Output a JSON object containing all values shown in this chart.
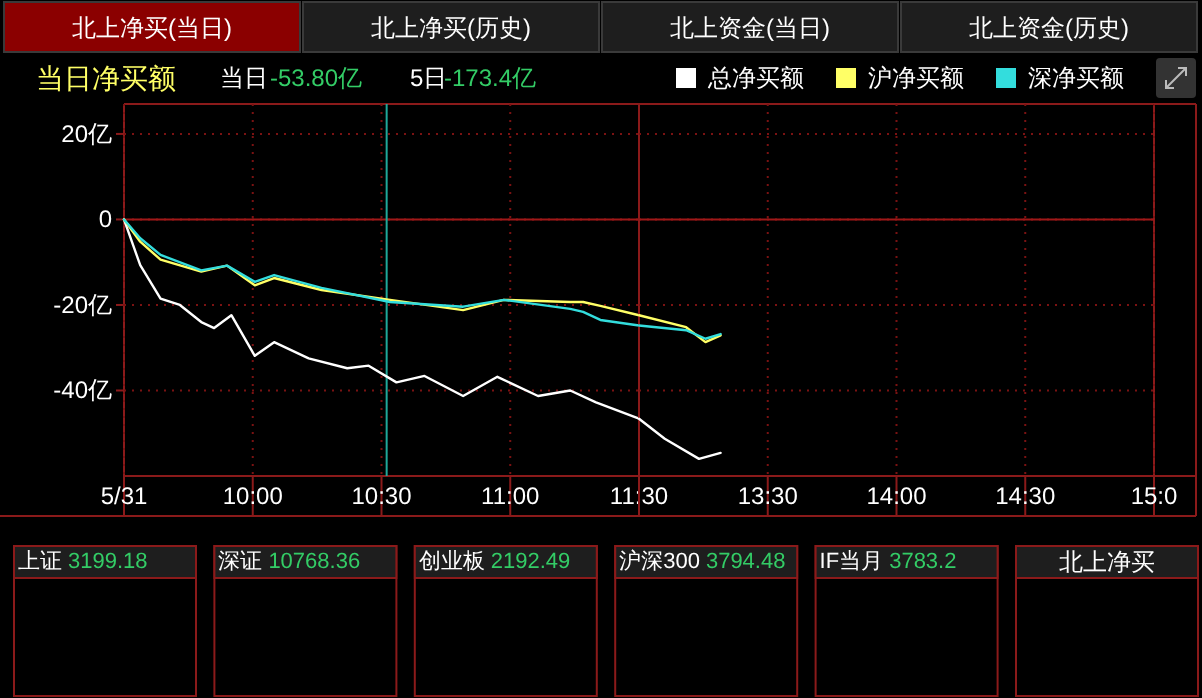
{
  "chart_data": [
    {
      "type": "line",
      "title": "当日净买额",
      "annotations": [
        "北上净买(当日)",
        "北上净买(历史)",
        "北上资金(当日)",
        "北上资金(历史)",
        "当日",
        "-53.80亿",
        "5日",
        "-173.4亿"
      ],
      "xlim": [
        9.5,
        11.5
      ],
      "xticks": [
        {
          "value": 9.5,
          "label": "5/31"
        },
        {
          "value": 10,
          "label": "10:00"
        },
        {
          "value": 10.5,
          "label": "10:30"
        },
        {
          "value": 11,
          "label": "11:00"
        },
        {
          "value": 11.5,
          "label": "11:30"
        }
      ],
      "ylim": [
        -60,
        27
      ],
      "yticks": [
        {
          "value": 20,
          "label": "20亿"
        },
        0,
        {
          "value": -20,
          "label": "-20亿"
        },
        {
          "value": -40,
          "label": "-40亿"
        }
      ],
      "grid": true,
      "legend": "top right",
      "line_style": "solid",
      "marker": "none",
      "ref_lines": [
        {
          "axis": "y",
          "value": 0,
          "color": "#a01818",
          "line_style": "solid"
        },
        {
          "axis": "x",
          "value": 10.52,
          "color": "#1fa89a",
          "line_style": "solid"
        }
      ],
      "series": [
        {
          "name": "总净买额",
          "color": "#ffffff",
          "x": [
            9.5,
            9.563,
            9.642,
            9.717,
            9.8,
            9.85,
            9.917,
            10.008,
            10.083,
            10.217,
            10.367,
            10.45,
            10.558,
            10.667,
            10.817,
            10.95,
            11.108,
            11.233,
            11.333,
            11.5
          ],
          "values": [
            0,
            -10.7,
            -18.5,
            -20,
            -24,
            -25.4,
            -22.4,
            -31.9,
            -28.7,
            -32.5,
            -34.8,
            -34.2,
            -38.1,
            -36.6,
            -41.3,
            -36.8,
            -41.3,
            -40,
            -42.8,
            -46.6
          ]
        },
        {
          "name": "沪净买额",
          "color": "#ffff66",
          "x": [
            9.5,
            9.563,
            9.642,
            9.8,
            9.9,
            10.008,
            10.083,
            10.267,
            10.533,
            10.817,
            10.975,
            11.233,
            11.283,
            11.35,
            11.5
          ],
          "values": [
            0,
            -5.2,
            -9.4,
            -12.2,
            -10.8,
            -15.4,
            -13.7,
            -16.5,
            -18.8,
            -21.2,
            -18.8,
            -19.3,
            -19.3,
            -20.2,
            -22.4
          ]
        },
        {
          "name": "深净买额",
          "color": "#33dddd",
          "x": [
            9.5,
            9.563,
            9.642,
            9.8,
            9.9,
            10.008,
            10.083,
            10.267,
            10.533,
            10.817,
            10.975,
            11.233,
            11.283,
            11.35,
            11.5
          ],
          "values": [
            0,
            -4.4,
            -8.3,
            -11.9,
            -10.8,
            -14.6,
            -13,
            -16,
            -19.3,
            -20.4,
            -18.8,
            -20.9,
            -21.6,
            -23.5,
            -24.8
          ]
        }
      ]
    },
    {
      "type": "line",
      "tick_labels": "x",
      "xlim": [
        13,
        15
      ],
      "xticks": [
        {
          "value": 13.5,
          "label": "13:30"
        },
        {
          "value": 14,
          "label": "14:00"
        },
        {
          "value": 14.5,
          "label": "14:30"
        },
        {
          "value": 15,
          "label": "15:0"
        }
      ],
      "ylim": [
        -60,
        27
      ],
      "yticks": [
        20,
        0,
        -20,
        -40
      ],
      "grid": true,
      "line_style": "solid",
      "marker": "none",
      "ref_lines": [
        {
          "axis": "y",
          "value": 0,
          "color": "#a01818",
          "line_style": "solid"
        }
      ],
      "series": [
        {
          "color": "#ffffff",
          "x": [
            13,
            13.1,
            13.233,
            13.317
          ],
          "values": [
            -46.6,
            -51.3,
            -56,
            -54.6
          ]
        },
        {
          "color": "#ffff66",
          "x": [
            13,
            13.183,
            13.258,
            13.317
          ],
          "values": [
            -22.4,
            -25.2,
            -28.7,
            -27.1
          ]
        },
        {
          "color": "#33dddd",
          "x": [
            13,
            13.183,
            13.258,
            13.317
          ],
          "values": [
            -24.8,
            -25.9,
            -27.9,
            -26.8
          ]
        }
      ]
    },
    {
      "type": "other",
      "title": "上证",
      "annotations": [
        "3199.18"
      ]
    },
    {
      "type": "other",
      "title": "深证",
      "annotations": [
        "10768.36"
      ]
    },
    {
      "type": "other",
      "title": "创业板",
      "annotations": [
        "2192.49"
      ]
    },
    {
      "type": "other",
      "title": "沪深300",
      "annotations": [
        "3794.48"
      ]
    },
    {
      "type": "other",
      "title": "IF当月",
      "annotations": [
        "3783.2"
      ]
    },
    {
      "type": "other",
      "title": "北上净买"
    }
  ]
}
